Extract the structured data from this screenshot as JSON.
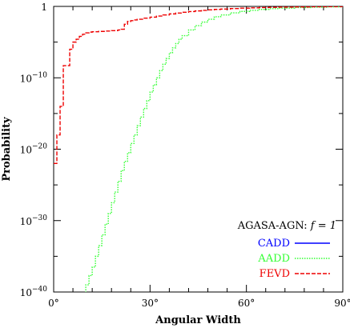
{
  "chart_data": {
    "type": "line",
    "xlabel": "Angular Width",
    "ylabel": "Probability",
    "xlim": [
      0,
      90
    ],
    "ylim_log10": [
      -40,
      0
    ],
    "y_scale": "log",
    "x_ticks": [
      {
        "value": 0,
        "label": "0°"
      },
      {
        "value": 30,
        "label": "30°"
      },
      {
        "value": 60,
        "label": "60°"
      },
      {
        "value": 90,
        "label": "90°"
      }
    ],
    "y_ticks": [
      {
        "exp": 0,
        "base": "1",
        "sup": ""
      },
      {
        "exp": -10,
        "base": "10",
        "sup": "−10"
      },
      {
        "exp": -20,
        "base": "10",
        "sup": "−20"
      },
      {
        "exp": -30,
        "base": "10",
        "sup": "−30"
      },
      {
        "exp": -40,
        "base": "10",
        "sup": "−40"
      }
    ],
    "legend": {
      "title_text": "AGASA-AGN: ",
      "title_math": "f = 1",
      "position": "bottom-right",
      "entries": [
        {
          "name": "CADD",
          "color": "#0000ff",
          "dash": "solid"
        },
        {
          "name": "AADD",
          "color": "#33ff33",
          "dash": "dotted"
        },
        {
          "name": "FEVD",
          "color": "#ee0000",
          "dash": "dashed"
        }
      ]
    },
    "series": [
      {
        "name": "CADD",
        "color": "#0000ff",
        "points": []
      },
      {
        "name": "AADD",
        "color": "#33ff33",
        "points": [
          [
            9,
            -41
          ],
          [
            10,
            -39
          ],
          [
            11,
            -37.7
          ],
          [
            12,
            -36.5
          ],
          [
            13,
            -35
          ],
          [
            14,
            -33.5
          ],
          [
            15,
            -32
          ],
          [
            16,
            -30.5
          ],
          [
            17,
            -29
          ],
          [
            18,
            -27.5
          ],
          [
            19,
            -26
          ],
          [
            20,
            -24.5
          ],
          [
            21,
            -23
          ],
          [
            22,
            -21.7
          ],
          [
            23,
            -20.5
          ],
          [
            24,
            -19.2
          ],
          [
            25,
            -18
          ],
          [
            26,
            -16.7
          ],
          [
            27,
            -15.5
          ],
          [
            28,
            -14.3
          ],
          [
            29,
            -13.2
          ],
          [
            30,
            -12
          ],
          [
            31,
            -11
          ],
          [
            32,
            -10
          ],
          [
            33,
            -9
          ],
          [
            34,
            -8.1
          ],
          [
            35,
            -7.3
          ],
          [
            36,
            -6.5
          ],
          [
            37,
            -5.8
          ],
          [
            38,
            -5.2
          ],
          [
            39,
            -4.6
          ],
          [
            40,
            -4.1
          ],
          [
            42,
            -3.3
          ],
          [
            44,
            -2.7
          ],
          [
            46,
            -2.2
          ],
          [
            48,
            -1.8
          ],
          [
            50,
            -1.45
          ],
          [
            52,
            -1.2
          ],
          [
            55,
            -0.9
          ],
          [
            58,
            -0.7
          ],
          [
            61,
            -0.55
          ],
          [
            64,
            -0.42
          ],
          [
            67,
            -0.32
          ],
          [
            70,
            -0.25
          ],
          [
            75,
            -0.16
          ],
          [
            80,
            -0.1
          ],
          [
            85,
            -0.06
          ],
          [
            90,
            -0.03
          ]
        ]
      },
      {
        "name": "FEVD",
        "color": "#ee0000",
        "points": [
          [
            0,
            -22
          ],
          [
            1,
            -18
          ],
          [
            2,
            -14
          ],
          [
            3,
            -8.3
          ],
          [
            4,
            -8.3
          ],
          [
            5,
            -6
          ],
          [
            6,
            -5
          ],
          [
            7,
            -4.6
          ],
          [
            8,
            -4.2
          ],
          [
            9,
            -3.9
          ],
          [
            10,
            -3.7
          ],
          [
            11,
            -3.6
          ],
          [
            12,
            -3.55
          ],
          [
            14,
            -3.5
          ],
          [
            16,
            -3.45
          ],
          [
            18,
            -3.4
          ],
          [
            20,
            -3.3
          ],
          [
            21,
            -3.2
          ],
          [
            22,
            -2.5
          ],
          [
            23,
            -2.1
          ],
          [
            24,
            -2
          ],
          [
            25,
            -1.9
          ],
          [
            26,
            -1.8
          ],
          [
            28,
            -1.65
          ],
          [
            30,
            -1.5
          ],
          [
            32,
            -1.35
          ],
          [
            34,
            -1.2
          ],
          [
            36,
            -1.05
          ],
          [
            38,
            -0.93
          ],
          [
            40,
            -0.82
          ],
          [
            42,
            -0.72
          ],
          [
            44,
            -0.63
          ],
          [
            46,
            -0.55
          ],
          [
            48,
            -0.48
          ],
          [
            50,
            -0.42
          ],
          [
            52,
            -0.37
          ],
          [
            55,
            -0.3
          ],
          [
            58,
            -0.25
          ],
          [
            61,
            -0.2
          ],
          [
            64,
            -0.16
          ],
          [
            67,
            -0.13
          ],
          [
            70,
            -0.1
          ],
          [
            75,
            -0.07
          ],
          [
            80,
            -0.05
          ],
          [
            85,
            -0.03
          ],
          [
            90,
            -0.01
          ]
        ]
      }
    ]
  }
}
